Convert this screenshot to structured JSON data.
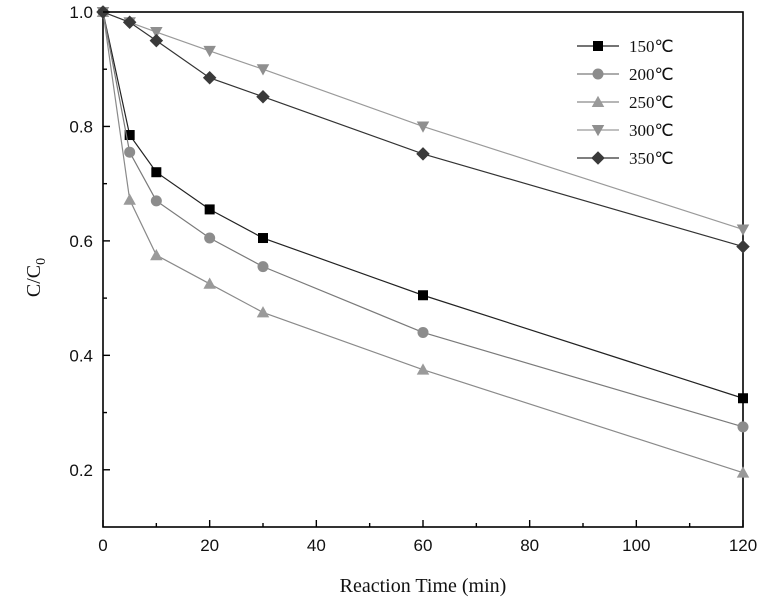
{
  "chart_data": {
    "type": "line",
    "xlabel": "Reaction Time (min)",
    "ylabel_main": "C/C",
    "ylabel_sub": "0",
    "xlim": [
      0,
      120
    ],
    "ylim": [
      0.1,
      1.0
    ],
    "xticks": [
      0,
      20,
      40,
      60,
      80,
      100,
      120
    ],
    "xtick_labels": [
      "0",
      "20",
      "40",
      "60",
      "80",
      "100",
      "120"
    ],
    "yticks": [
      0.2,
      0.4,
      0.6,
      0.8,
      1.0
    ],
    "ytick_labels": [
      "0.2",
      "0.4",
      "0.6",
      "0.8",
      "1.0"
    ],
    "grid": false,
    "legend_position": "top-right",
    "x": [
      0,
      5,
      10,
      20,
      30,
      60,
      120
    ],
    "series": [
      {
        "name": "150℃",
        "marker": "square",
        "color": "#000000",
        "line_color": "#222222",
        "values": [
          1.0,
          0.785,
          0.72,
          0.655,
          0.605,
          0.505,
          0.325
        ]
      },
      {
        "name": "200℃",
        "marker": "circle",
        "color": "#8c8c8c",
        "line_color": "#7a7a7a",
        "values": [
          1.0,
          0.755,
          0.67,
          0.605,
          0.555,
          0.44,
          0.275
        ]
      },
      {
        "name": "250℃",
        "marker": "triangle-up",
        "color": "#9a9a9a",
        "line_color": "#8a8a8a",
        "values": [
          1.0,
          0.672,
          0.575,
          0.525,
          0.475,
          0.375,
          0.195
        ]
      },
      {
        "name": "300℃",
        "marker": "triangle-down",
        "color": "#8f8f8f",
        "line_color": "#9a9a9a",
        "values": [
          1.0,
          0.982,
          0.965,
          0.932,
          0.9,
          0.8,
          0.62
        ]
      },
      {
        "name": "350℃",
        "marker": "diamond",
        "color": "#3a3a3a",
        "line_color": "#333333",
        "values": [
          1.0,
          0.982,
          0.95,
          0.885,
          0.852,
          0.752,
          0.59
        ]
      }
    ]
  }
}
